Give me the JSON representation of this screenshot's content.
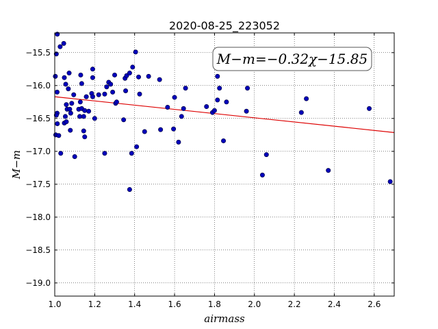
{
  "chart_data": {
    "type": "scatter",
    "title": "2020-08-25_223052",
    "xlabel": "airmass",
    "ylabel": "M−m",
    "xlim": [
      1.0,
      2.7
    ],
    "ylim": [
      -15.2,
      -19.2
    ],
    "y_inverted": true,
    "grid": true,
    "x_ticks": [
      1.0,
      1.2,
      1.4,
      1.6,
      1.8,
      2.0,
      2.2,
      2.4,
      2.6
    ],
    "x_tick_labels": [
      "1.0",
      "1.2",
      "1.4",
      "1.6",
      "1.8",
      "2.0",
      "2.2",
      "2.4",
      "2.6"
    ],
    "y_ticks": [
      -15.5,
      -16.0,
      -16.5,
      -17.0,
      -17.5,
      -18.0,
      -18.5,
      -19.0
    ],
    "y_tick_labels": [
      "−15.5",
      "−16.0",
      "−16.5",
      "−17.0",
      "−17.5",
      "−18.0",
      "−18.5",
      "−19.0"
    ],
    "annotation": "M−m=−0.32χ−15.85",
    "fit_line": {
      "slope": -0.32,
      "intercept": -15.85,
      "color": "#dd0000"
    },
    "point_color": "#0000bb",
    "points": [
      [
        1.013,
        -15.22
      ],
      [
        1.008,
        -15.52
      ],
      [
        1.027,
        -15.41
      ],
      [
        1.045,
        -15.36
      ],
      [
        1.003,
        -15.86
      ],
      [
        1.048,
        -15.88
      ],
      [
        1.072,
        -15.81
      ],
      [
        1.012,
        -16.1
      ],
      [
        1.055,
        -15.98
      ],
      [
        1.068,
        -16.05
      ],
      [
        1.095,
        -16.14
      ],
      [
        1.085,
        -16.27
      ],
      [
        1.058,
        -16.29
      ],
      [
        1.062,
        -16.36
      ],
      [
        1.075,
        -16.36
      ],
      [
        1.08,
        -16.42
      ],
      [
        1.012,
        -16.42
      ],
      [
        1.008,
        -16.45
      ],
      [
        1.053,
        -16.47
      ],
      [
        1.013,
        -16.58
      ],
      [
        1.048,
        -16.57
      ],
      [
        1.058,
        -16.55
      ],
      [
        1.078,
        -16.68
      ],
      [
        1.005,
        -16.75
      ],
      [
        1.02,
        -16.76
      ],
      [
        1.03,
        -17.03
      ],
      [
        1.1,
        -17.08
      ],
      [
        1.13,
        -15.84
      ],
      [
        1.135,
        -15.97
      ],
      [
        1.12,
        -16.36
      ],
      [
        1.128,
        -16.25
      ],
      [
        1.135,
        -16.35
      ],
      [
        1.15,
        -16.38
      ],
      [
        1.17,
        -16.39
      ],
      [
        1.125,
        -16.47
      ],
      [
        1.145,
        -16.47
      ],
      [
        1.145,
        -16.69
      ],
      [
        1.15,
        -16.78
      ],
      [
        1.19,
        -15.75
      ],
      [
        1.19,
        -15.88
      ],
      [
        1.185,
        -16.12
      ],
      [
        1.19,
        -16.17
      ],
      [
        1.158,
        -16.17
      ],
      [
        1.2,
        -16.5
      ],
      [
        1.22,
        -16.14
      ],
      [
        1.25,
        -16.13
      ],
      [
        1.26,
        -16.02
      ],
      [
        1.27,
        -15.95
      ],
      [
        1.28,
        -15.98
      ],
      [
        1.29,
        -16.1
      ],
      [
        1.3,
        -15.84
      ],
      [
        1.305,
        -16.27
      ],
      [
        1.31,
        -16.25
      ],
      [
        1.25,
        -17.03
      ],
      [
        1.345,
        -16.52
      ],
      [
        1.355,
        -16.08
      ],
      [
        1.352,
        -15.89
      ],
      [
        1.36,
        -15.85
      ],
      [
        1.375,
        -15.81
      ],
      [
        1.39,
        -15.72
      ],
      [
        1.405,
        -15.49
      ],
      [
        1.42,
        -15.87
      ],
      [
        1.425,
        -16.13
      ],
      [
        1.47,
        -15.86
      ],
      [
        1.45,
        -16.7
      ],
      [
        1.41,
        -16.93
      ],
      [
        1.385,
        -17.03
      ],
      [
        1.375,
        -17.58
      ],
      [
        1.525,
        -15.91
      ],
      [
        1.565,
        -16.33
      ],
      [
        1.53,
        -16.67
      ],
      [
        1.6,
        -16.18
      ],
      [
        1.595,
        -16.66
      ],
      [
        1.62,
        -16.86
      ],
      [
        1.635,
        -16.47
      ],
      [
        1.645,
        -16.35
      ],
      [
        1.655,
        -16.04
      ],
      [
        1.76,
        -16.32
      ],
      [
        1.79,
        -16.41
      ],
      [
        1.8,
        -16.38
      ],
      [
        1.815,
        -16.22
      ],
      [
        1.815,
        -15.86
      ],
      [
        1.825,
        -16.04
      ],
      [
        1.845,
        -16.84
      ],
      [
        1.86,
        -16.25
      ],
      [
        1.96,
        -16.39
      ],
      [
        1.965,
        -16.04
      ],
      [
        2.04,
        -17.36
      ],
      [
        2.06,
        -17.05
      ],
      [
        2.235,
        -16.41
      ],
      [
        2.26,
        -16.2
      ],
      [
        2.37,
        -17.29
      ],
      [
        2.575,
        -16.35
      ],
      [
        2.68,
        -17.46
      ]
    ]
  }
}
